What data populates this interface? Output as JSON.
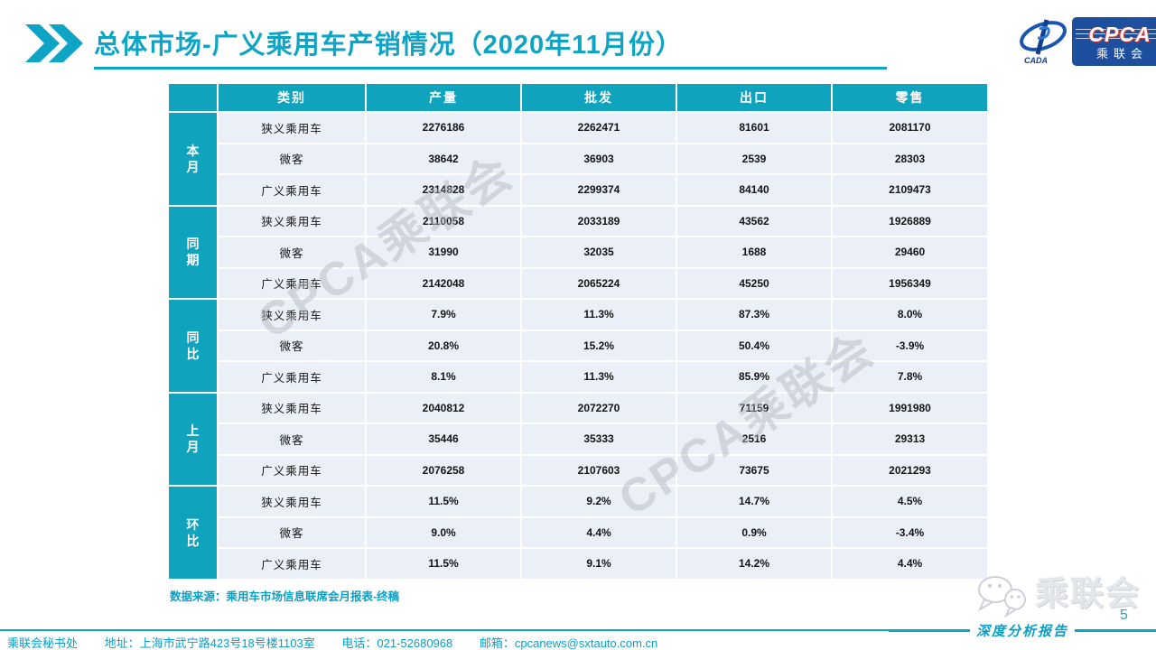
{
  "slide": {
    "title": "总体市场-广义乘用车产销情况（2020年11月份）",
    "page_number": "5"
  },
  "logo": {
    "emblem_text": "CADA",
    "name_en": "CPCA",
    "name_cn": "乘联会"
  },
  "table": {
    "columns": [
      "类别",
      "产量",
      "批发",
      "出口",
      "零售"
    ],
    "groups": [
      {
        "label": "本月",
        "rows": [
          {
            "category": "狭义乘用车",
            "values": [
              "2276186",
              "2262471",
              "81601",
              "2081170"
            ]
          },
          {
            "category": "微客",
            "values": [
              "38642",
              "36903",
              "2539",
              "28303"
            ]
          },
          {
            "category": "广义乘用车",
            "values": [
              "2314828",
              "2299374",
              "84140",
              "2109473"
            ]
          }
        ]
      },
      {
        "label": "同期",
        "rows": [
          {
            "category": "狭义乘用车",
            "values": [
              "2110058",
              "2033189",
              "43562",
              "1926889"
            ]
          },
          {
            "category": "微客",
            "values": [
              "31990",
              "32035",
              "1688",
              "29460"
            ]
          },
          {
            "category": "广义乘用车",
            "values": [
              "2142048",
              "2065224",
              "45250",
              "1956349"
            ]
          }
        ]
      },
      {
        "label": "同比",
        "rows": [
          {
            "category": "狭义乘用车",
            "values": [
              "7.9%",
              "11.3%",
              "87.3%",
              "8.0%"
            ]
          },
          {
            "category": "微客",
            "values": [
              "20.8%",
              "15.2%",
              "50.4%",
              "-3.9%"
            ]
          },
          {
            "category": "广义乘用车",
            "values": [
              "8.1%",
              "11.3%",
              "85.9%",
              "7.8%"
            ]
          }
        ]
      },
      {
        "label": "上月",
        "rows": [
          {
            "category": "狭义乘用车",
            "values": [
              "2040812",
              "2072270",
              "71159",
              "1991980"
            ]
          },
          {
            "category": "微客",
            "values": [
              "35446",
              "35333",
              "2516",
              "29313"
            ]
          },
          {
            "category": "广义乘用车",
            "values": [
              "2076258",
              "2107603",
              "73675",
              "2021293"
            ]
          }
        ]
      },
      {
        "label": "环比",
        "rows": [
          {
            "category": "狭义乘用车",
            "values": [
              "11.5%",
              "9.2%",
              "14.7%",
              "4.5%"
            ]
          },
          {
            "category": "微客",
            "values": [
              "9.0%",
              "4.4%",
              "0.9%",
              "-3.4%"
            ]
          },
          {
            "category": "广义乘用车",
            "values": [
              "11.5%",
              "9.1%",
              "14.2%",
              "4.4%"
            ]
          }
        ]
      }
    ]
  },
  "source_note": "数据来源：乘用车市场信息联席会月报表-终稿",
  "watermark_text": "CPCA乘联会",
  "bottom_right": {
    "wechat_label": "乘联会",
    "report_label": "深度分析报告"
  },
  "footer": {
    "org": "乘联会秘书处",
    "address": "地址：上海市武宁路423号18号楼1103室",
    "phone": "电话：021-52680968",
    "email": "邮箱：cpcanews@sxtauto.com.cn"
  },
  "colors": {
    "teal": "#0DA4C5",
    "table_header_teal": "#0FA3BD",
    "row_background": "#EAEFF8",
    "logo_navy": "#1D4F9E",
    "watermark_gray": "#B4B8BF"
  }
}
